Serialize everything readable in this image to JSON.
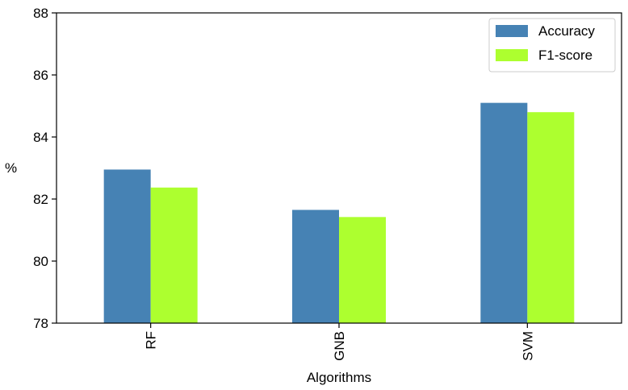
{
  "chart_data": {
    "type": "bar",
    "categories": [
      "RF",
      "GNB",
      "SVM"
    ],
    "series": [
      {
        "name": "Accuracy",
        "values": [
          82.95,
          81.65,
          85.1
        ],
        "color": "#4682b4"
      },
      {
        "name": "F1-score",
        "values": [
          82.37,
          81.42,
          84.8
        ],
        "color": "#adff2f"
      }
    ],
    "xlabel": "Algorithms",
    "ylabel": "%",
    "ylim": [
      78,
      88
    ],
    "yticks": [
      "78",
      "80",
      "82",
      "84",
      "86",
      "88"
    ],
    "grid": false,
    "legend_position": "top-right"
  }
}
